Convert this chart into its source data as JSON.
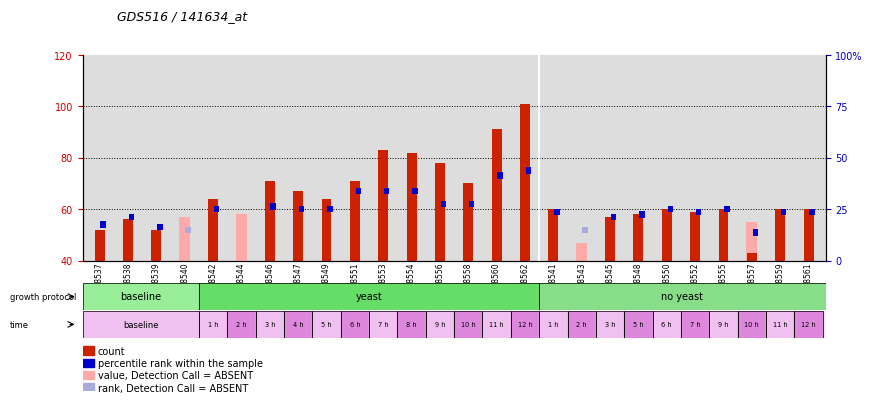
{
  "title": "GDS516 / 141634_at",
  "samples": [
    "GSM8537",
    "GSM8538",
    "GSM8539",
    "GSM8540",
    "GSM8542",
    "GSM8544",
    "GSM8546",
    "GSM8547",
    "GSM8549",
    "GSM8551",
    "GSM8553",
    "GSM8554",
    "GSM8556",
    "GSM8558",
    "GSM8560",
    "GSM8562",
    "GSM8541",
    "GSM8543",
    "GSM8545",
    "GSM8548",
    "GSM8550",
    "GSM8552",
    "GSM8555",
    "GSM8557",
    "GSM8559",
    "GSM8561"
  ],
  "red_bars": [
    52,
    56,
    52,
    null,
    64,
    null,
    71,
    67,
    64,
    71,
    83,
    82,
    78,
    70,
    91,
    101,
    60,
    null,
    57,
    58,
    60,
    59,
    60,
    43,
    60,
    60
  ],
  "blue_bars": [
    54,
    57,
    53,
    null,
    60,
    null,
    61,
    60,
    60,
    67,
    67,
    67,
    62,
    62,
    73,
    75,
    59,
    null,
    57,
    58,
    60,
    59,
    60,
    51,
    59,
    59
  ],
  "pink_bars": [
    null,
    null,
    null,
    57,
    null,
    58,
    null,
    null,
    null,
    null,
    null,
    null,
    null,
    null,
    null,
    null,
    null,
    47,
    null,
    null,
    null,
    null,
    null,
    55,
    null,
    null
  ],
  "light_blue_bars": [
    null,
    null,
    null,
    52,
    null,
    null,
    null,
    null,
    null,
    null,
    null,
    null,
    null,
    null,
    null,
    null,
    null,
    52,
    null,
    null,
    null,
    null,
    null,
    null,
    null,
    null
  ],
  "ylim_left": [
    40,
    120
  ],
  "ylim_right": [
    0,
    100
  ],
  "yticks_left": [
    40,
    60,
    80,
    100,
    120
  ],
  "yticks_right": [
    0,
    25,
    50,
    75,
    100
  ],
  "left_color": "#cc0000",
  "right_color": "#0000cc",
  "red_color": "#cc2200",
  "blue_color": "#0000cc",
  "pink_color": "#ffaaaa",
  "light_blue_color": "#aaaadd",
  "bg_color": "#dddddd",
  "green_baseline": "#99ee99",
  "green_yeast": "#66dd66",
  "green_no_yeast": "#88dd88",
  "legend_items": [
    "count",
    "percentile rank within the sample",
    "value, Detection Call = ABSENT",
    "rank, Detection Call = ABSENT"
  ],
  "yeast_times": [
    "1 h",
    "2 h",
    "3 h",
    "4 h",
    "5 h",
    "6 h",
    "7 h",
    "8 h",
    "9 h",
    "10 h",
    "11 h",
    "12 h"
  ],
  "no_yeast_times": [
    "1 h",
    "2 h",
    "3 h",
    "5 h",
    "6 h",
    "7 h",
    "9 h",
    "10 h",
    "11 h",
    "12 h"
  ]
}
